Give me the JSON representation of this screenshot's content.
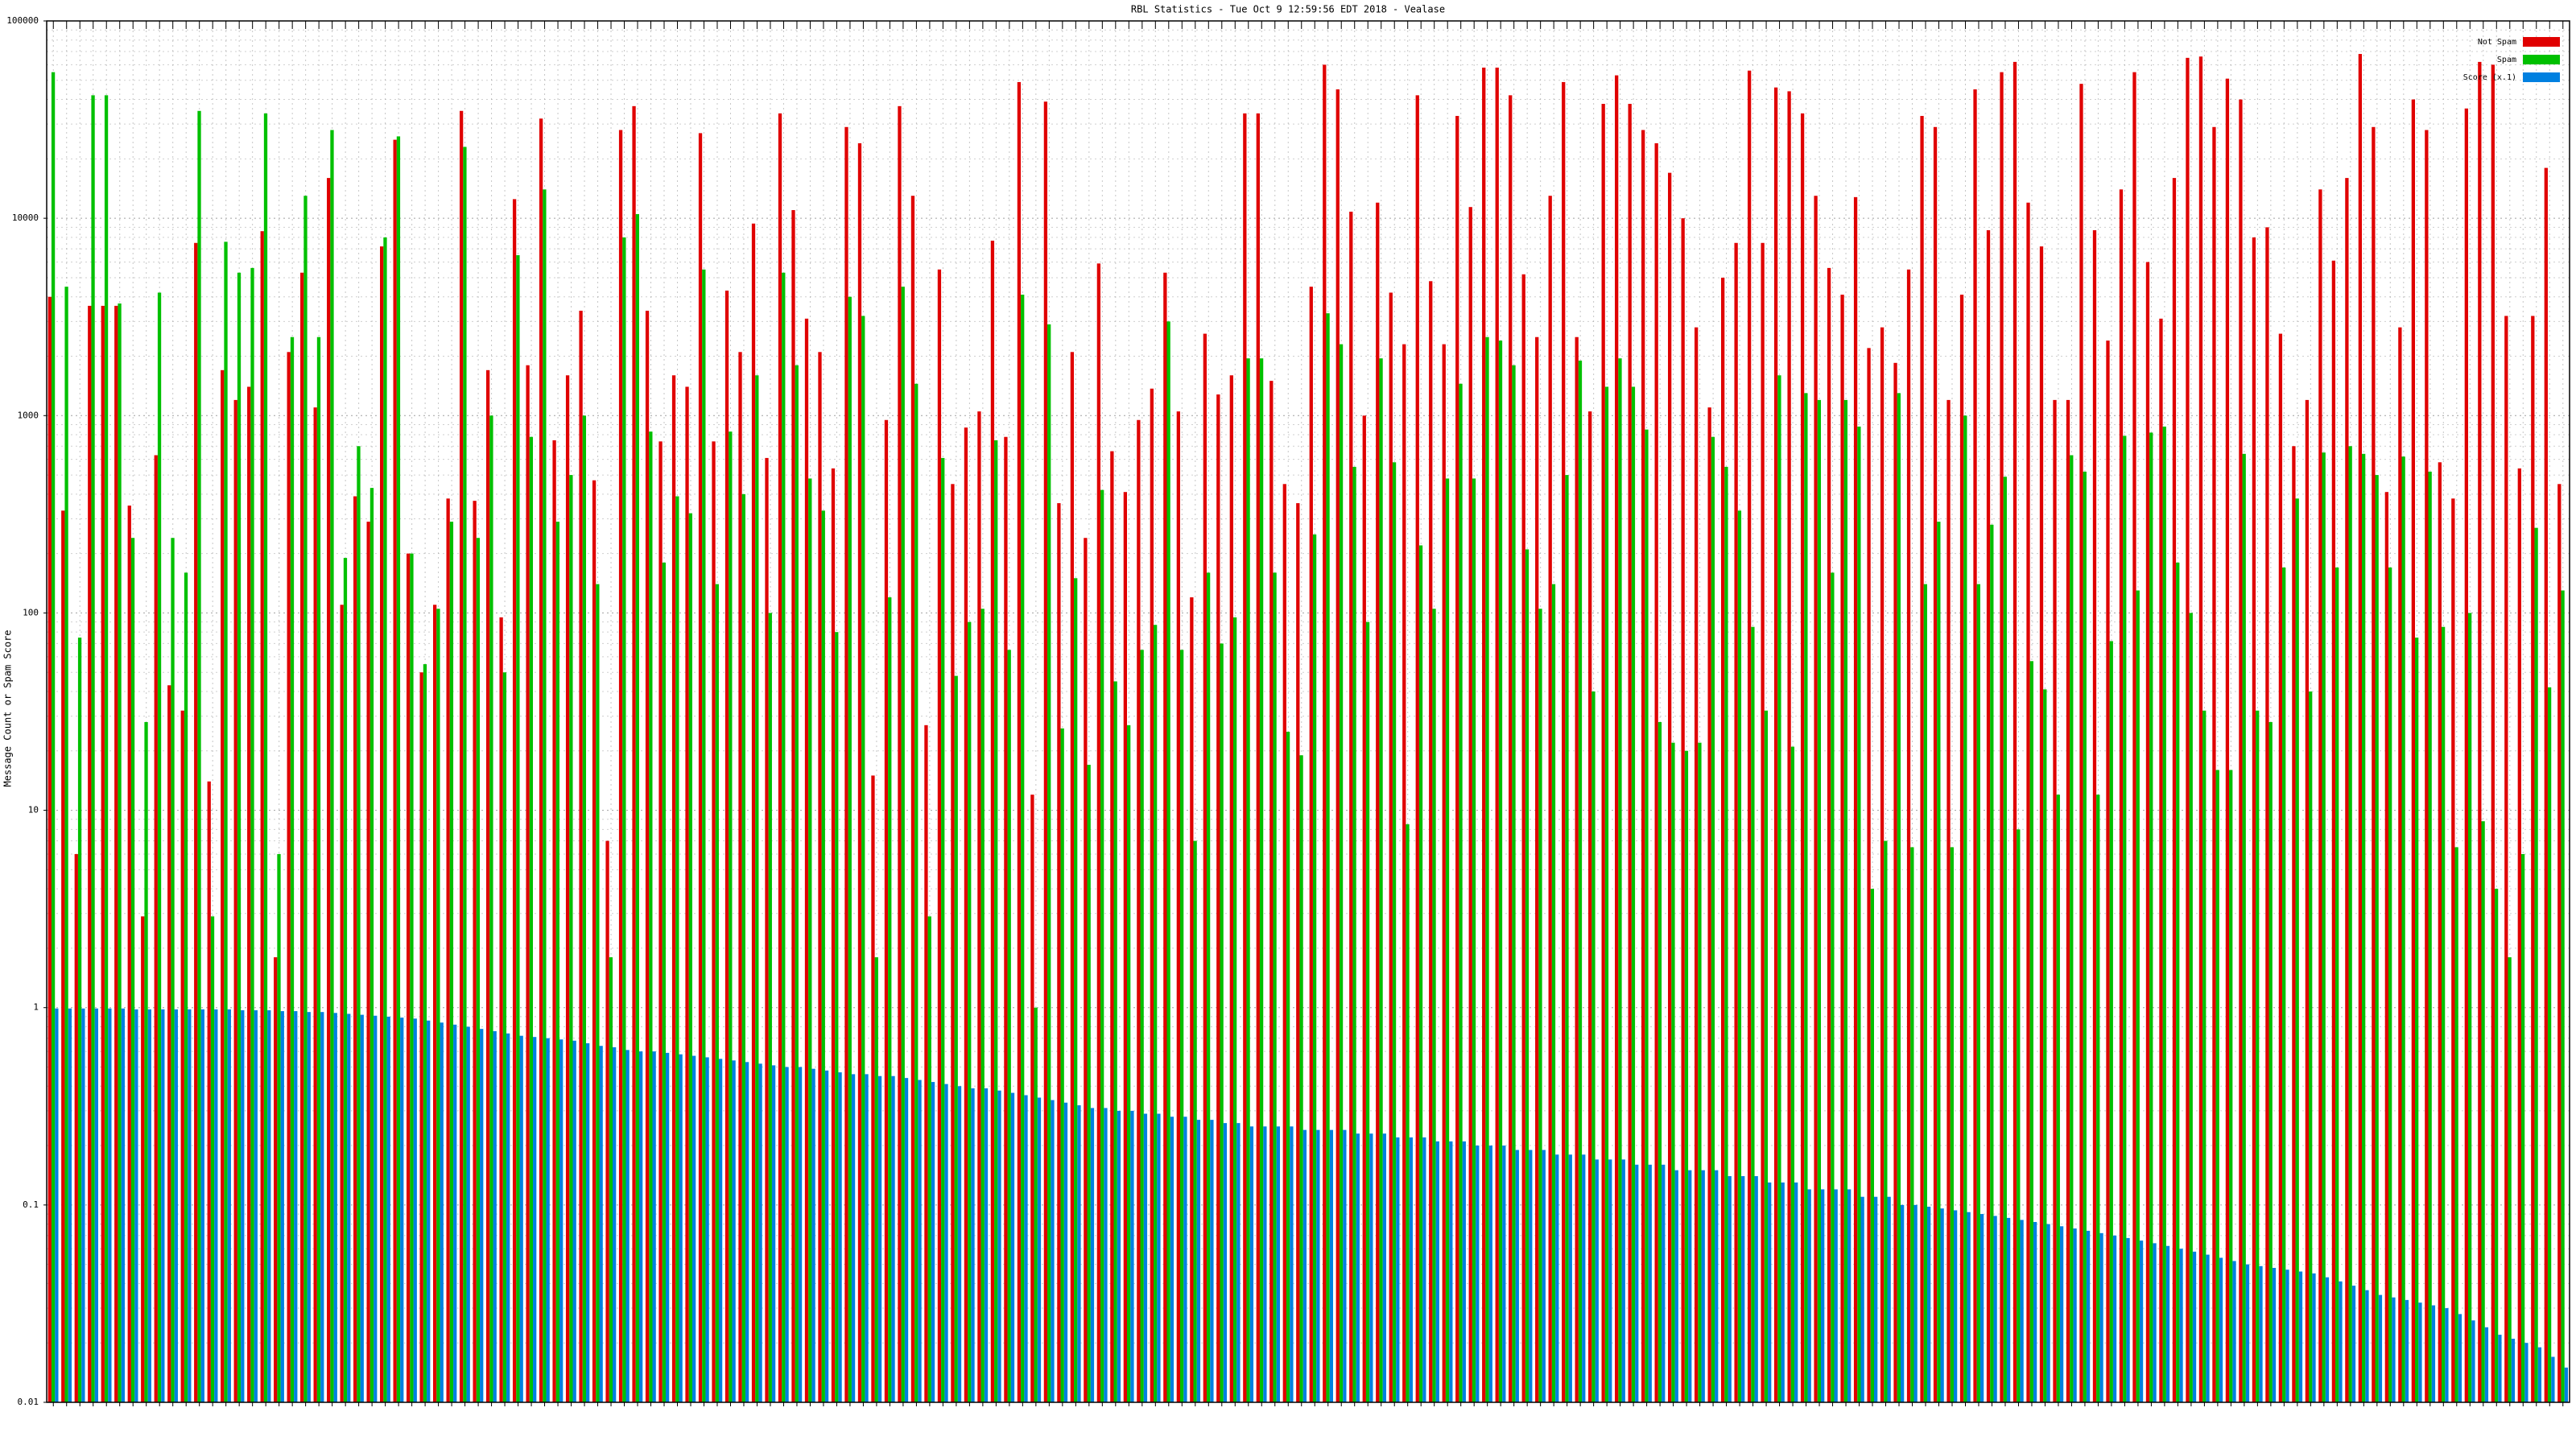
{
  "chart_data": {
    "type": "bar",
    "title": "RBL Statistics - Tue Oct  9 12:59:56 EDT 2018 - Vealase",
    "y_label": "Message Count or Spam Score",
    "log_scale": true,
    "grid": true,
    "legend": "top-right",
    "ylim": [
      0.01,
      100000
    ],
    "yticks": [
      0.01,
      0.1,
      1,
      10,
      100,
      1000,
      10000,
      100000
    ],
    "categories": [
      null,
      null,
      null,
      null,
      null,
      null,
      null,
      null,
      null,
      null,
      null,
      null,
      null,
      null,
      null,
      null,
      null,
      null,
      null,
      null,
      null,
      null,
      null,
      null,
      null,
      null,
      null,
      null,
      null,
      null,
      null,
      null,
      null,
      null,
      null,
      null,
      null,
      null,
      null,
      null,
      null,
      null,
      null,
      null,
      null,
      null,
      null,
      null,
      null,
      null,
      null,
      null,
      null,
      null,
      null,
      null,
      null,
      null,
      null,
      null,
      null,
      null,
      null,
      null,
      null,
      null,
      null,
      null,
      null,
      null,
      null,
      null,
      null,
      null,
      null,
      null,
      null,
      null,
      null,
      null,
      null,
      null,
      null,
      null,
      null,
      null,
      null,
      null,
      null,
      null,
      null,
      null,
      null,
      null,
      null,
      null,
      null,
      null,
      null,
      null,
      null,
      null,
      null,
      null,
      null,
      null,
      null,
      null,
      null,
      null,
      null,
      null,
      null,
      null,
      null,
      null,
      null,
      null,
      null,
      null,
      null,
      null,
      null,
      null,
      null,
      null,
      null,
      null,
      null,
      null,
      null,
      null,
      null,
      null,
      null,
      null,
      null,
      null,
      null,
      null,
      null,
      null,
      null,
      null,
      null,
      null,
      null,
      null,
      null,
      null,
      null,
      null,
      null,
      null,
      null,
      null,
      null,
      null,
      null,
      null,
      null,
      null,
      null,
      null,
      null,
      null,
      null,
      null,
      null,
      null,
      null,
      null,
      null,
      null,
      null,
      null,
      null,
      null,
      null,
      null,
      null,
      null,
      null,
      null,
      null,
      null,
      null,
      null,
      null,
      null
    ],
    "series": [
      {
        "name": "Not Spam",
        "color": "#e00000",
        "values": [
          4000,
          330,
          6,
          3600,
          3600,
          3600,
          350,
          2.9,
          630,
          43,
          32,
          7500,
          14,
          1700,
          1200,
          1400,
          8600,
          1.8,
          2100,
          5300,
          1100,
          16000,
          110,
          390,
          290,
          7200,
          25000,
          200,
          50,
          110,
          380,
          35000,
          370,
          1700,
          95,
          12500,
          1800,
          32000,
          750,
          1600,
          3400,
          470,
          7,
          28000,
          37000,
          3400,
          740,
          1600,
          1400,
          27000,
          740,
          4300,
          2100,
          9400,
          610,
          34000,
          11000,
          3100,
          2100,
          540,
          29000,
          24000,
          15,
          950,
          37000,
          13000,
          27,
          5500,
          450,
          870,
          1050,
          7700,
          780,
          49000,
          12,
          39000,
          360,
          2100,
          240,
          5900,
          660,
          410,
          950,
          1370,
          5300,
          1050,
          120,
          2600,
          1280,
          1600,
          34000,
          34000,
          1500,
          450,
          360,
          4500,
          60000,
          45000,
          10800,
          1000,
          12000,
          4200,
          2300,
          42000,
          4800,
          2300,
          33000,
          11400,
          58000,
          58000,
          42000,
          5200,
          2500,
          13000,
          49000,
          2500,
          1050,
          38000,
          53000,
          38000,
          28000,
          24000,
          17000,
          10000,
          2800,
          1100,
          5000,
          7500,
          56000,
          7500,
          46000,
          44000,
          34000,
          13000,
          5600,
          4100,
          12800,
          2200,
          2800,
          1850,
          5500,
          33000,
          29000,
          1200,
          4100,
          45000,
          8700,
          55000,
          62000,
          12000,
          7200,
          1200,
          1200,
          48000,
          8700,
          2400,
          14000,
          55000,
          6000,
          3100,
          16000,
          65000,
          66000,
          29000,
          51000,
          40000,
          8000,
          9000,
          2600,
          700,
          1200,
          14000,
          6100,
          16000,
          68000,
          29000,
          410,
          2800,
          40000,
          28000,
          580,
          380,
          36000,
          62000,
          60000,
          3200,
          540,
          3200,
          18000,
          450
        ]
      },
      {
        "name": "Spam",
        "color": "#00c000",
        "values": [
          55000,
          4500,
          75,
          42000,
          42000,
          3700,
          240,
          28,
          4200,
          240,
          160,
          35000,
          2.9,
          7600,
          5300,
          5600,
          34000,
          6,
          2500,
          13000,
          2500,
          28000,
          190,
          700,
          430,
          8000,
          26000,
          200,
          55,
          105,
          290,
          23000,
          240,
          1000,
          50,
          6500,
          780,
          14000,
          290,
          500,
          1000,
          140,
          1.8,
          8000,
          10500,
          830,
          180,
          390,
          320,
          5500,
          140,
          830,
          400,
          1600,
          100,
          5300,
          1800,
          480,
          330,
          80,
          4000,
          3200,
          1.8,
          120,
          4500,
          1450,
          2.9,
          610,
          48,
          90,
          105,
          750,
          65,
          4100,
          1,
          2900,
          26,
          150,
          17,
          420,
          45,
          27,
          65,
          87,
          3000,
          65,
          7,
          160,
          70,
          95,
          1950,
          1950,
          160,
          25,
          19,
          250,
          3300,
          2300,
          550,
          90,
          1950,
          580,
          8.5,
          220,
          105,
          480,
          1450,
          480,
          2500,
          2400,
          1800,
          210,
          105,
          140,
          500,
          1900,
          40,
          1400,
          1950,
          1400,
          850,
          28,
          22,
          20,
          22,
          780,
          550,
          330,
          85,
          32,
          1600,
          21,
          1300,
          1200,
          160,
          1200,
          880,
          4,
          7,
          1300,
          6.5,
          140,
          290,
          6.5,
          1000,
          140,
          280,
          490,
          8,
          57,
          41,
          12,
          630,
          520,
          12,
          72,
          790,
          130,
          820,
          880,
          180,
          100,
          32,
          16,
          16,
          640,
          32,
          28,
          170,
          380,
          40,
          650,
          170,
          700,
          640,
          500,
          170,
          620,
          75,
          520,
          85,
          6.5,
          100,
          8.8,
          4,
          1.8,
          6,
          270,
          42,
          130
        ]
      },
      {
        "name": "Score (x.1)",
        "color": "#0080e0",
        "values": [
          0.99,
          0.99,
          0.99,
          0.99,
          0.99,
          0.99,
          0.98,
          0.98,
          0.98,
          0.98,
          0.98,
          0.98,
          0.98,
          0.98,
          0.97,
          0.97,
          0.97,
          0.96,
          0.96,
          0.95,
          0.95,
          0.94,
          0.93,
          0.92,
          0.91,
          0.9,
          0.89,
          0.88,
          0.86,
          0.84,
          0.82,
          0.8,
          0.78,
          0.76,
          0.74,
          0.72,
          0.71,
          0.7,
          0.69,
          0.68,
          0.66,
          0.64,
          0.63,
          0.61,
          0.6,
          0.6,
          0.59,
          0.58,
          0.57,
          0.56,
          0.55,
          0.54,
          0.53,
          0.52,
          0.51,
          0.5,
          0.5,
          0.49,
          0.48,
          0.47,
          0.46,
          0.46,
          0.45,
          0.45,
          0.44,
          0.43,
          0.42,
          0.41,
          0.4,
          0.39,
          0.39,
          0.38,
          0.37,
          0.36,
          0.35,
          0.34,
          0.33,
          0.32,
          0.31,
          0.31,
          0.3,
          0.3,
          0.29,
          0.29,
          0.28,
          0.28,
          0.27,
          0.27,
          0.26,
          0.26,
          0.25,
          0.25,
          0.25,
          0.25,
          0.24,
          0.24,
          0.24,
          0.24,
          0.23,
          0.23,
          0.23,
          0.22,
          0.22,
          0.22,
          0.21,
          0.21,
          0.21,
          0.2,
          0.2,
          0.2,
          0.19,
          0.19,
          0.19,
          0.18,
          0.18,
          0.18,
          0.17,
          0.17,
          0.17,
          0.16,
          0.16,
          0.16,
          0.15,
          0.15,
          0.15,
          0.15,
          0.14,
          0.14,
          0.14,
          0.13,
          0.13,
          0.13,
          0.12,
          0.12,
          0.12,
          0.12,
          0.11,
          0.11,
          0.11,
          0.1,
          0.1,
          0.098,
          0.096,
          0.094,
          0.092,
          0.09,
          0.088,
          0.086,
          0.084,
          0.082,
          0.08,
          0.078,
          0.076,
          0.074,
          0.072,
          0.07,
          0.068,
          0.066,
          0.064,
          0.062,
          0.06,
          0.058,
          0.056,
          0.054,
          0.052,
          0.05,
          0.049,
          0.048,
          0.047,
          0.046,
          0.045,
          0.043,
          0.041,
          0.039,
          0.037,
          0.035,
          0.034,
          0.033,
          0.032,
          0.031,
          0.03,
          0.028,
          0.026,
          0.024,
          0.022,
          0.021,
          0.02,
          0.019,
          0.017,
          0.015
        ]
      }
    ]
  }
}
